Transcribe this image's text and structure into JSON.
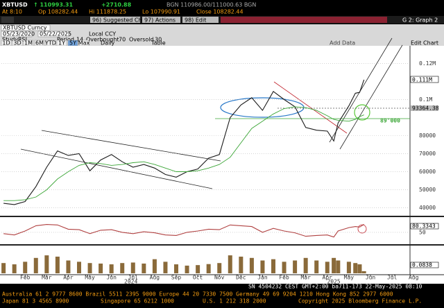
{
  "header": {
    "ticker": "XBTUSD",
    "last": "↑ 110993.31",
    "change": "+2710.88",
    "quote": "BGN 110986.00/111000.63 BGN",
    "time": "At 8:10",
    "open": "Op 108282.44",
    "high": "Hi 111878.25",
    "low": "Lo 107990.91",
    "close": "Close 108282.44"
  },
  "toolbar": {
    "suggested": "96) Suggested Charts",
    "actions": "97) Actions",
    "edit": "98) Edit",
    "graph": "G 2: Graph 2",
    "security": "XBTUSD Curncy",
    "start": "05/23/2020",
    "end": "05/22/2025",
    "ccy": "Local CCY",
    "study_label": "Study",
    "study": "RSI",
    "period_label": "Period",
    "period": "14",
    "overbought_label": "Overbought",
    "overbought": "70",
    "oversold_label": "Oversold",
    "oversold": "30",
    "ranges": [
      "1D",
      "3D",
      "1M",
      "6M",
      "YTD",
      "1Y",
      "5Y",
      "Max"
    ],
    "frequency": "Daily",
    "table": "Table",
    "add_data": "Add Data",
    "edit_chart": "Edit Chart"
  },
  "chart_data": [
    {
      "type": "line",
      "x": [
        0,
        0.5,
        1,
        1.5,
        2,
        2.5,
        3,
        3.5,
        4,
        4.5,
        5,
        5.5,
        6,
        6.5,
        7,
        7.5,
        8,
        8.5,
        9,
        9.5,
        10,
        10.5,
        11,
        11.5,
        12,
        12.5,
        13,
        13.5,
        14,
        14.5,
        15,
        15.3,
        15.5,
        16,
        16.3,
        16.5,
        16.7
      ],
      "series": [
        {
          "color": "#1a1a1a",
          "values": [
            42500,
            41800,
            43500,
            51800,
            62500,
            71500,
            69000,
            70000,
            60500,
            66500,
            69500,
            65500,
            62500,
            64000,
            62000,
            58500,
            57000,
            60000,
            61500,
            67500,
            69500,
            90000,
            97000,
            101000,
            94000,
            104500,
            100000,
            96000,
            84500,
            83000,
            82500,
            77000,
            87000,
            96500,
            103500,
            104000,
            110993.31
          ]
        },
        {
          "color": "#3aa535",
          "values": [
            44000,
            44000,
            44500,
            46000,
            50000,
            56000,
            60000,
            63500,
            65000,
            64500,
            63500,
            64000,
            65000,
            65500,
            64000,
            62000,
            60000,
            60000,
            60500,
            62000,
            64000,
            68000,
            76000,
            84000,
            88000,
            92000,
            95000,
            96000,
            95500,
            94000,
            91000,
            89000,
            88500,
            88000,
            89000,
            90500,
            91500
          ]
        }
      ],
      "xlim": [
        -0.1,
        18.8
      ],
      "ylim": [
        36000,
        129000
      ],
      "yticks": [
        40000,
        50000,
        60000,
        70000,
        80000,
        {
          "value": 100000,
          "label": "0.1M"
        },
        {
          "value": 120000,
          "label": "0.12M"
        }
      ],
      "annotations": [
        "0.111M",
        "93364.38",
        "89'000"
      ]
    },
    {
      "type": "line",
      "x": [
        0,
        0.5,
        1,
        1.5,
        2,
        2.5,
        3,
        3.5,
        4,
        4.5,
        5,
        5.5,
        6,
        6.5,
        7,
        7.5,
        8,
        8.5,
        9,
        9.5,
        10,
        10.5,
        11,
        11.5,
        12,
        12.5,
        13,
        13.5,
        14,
        14.5,
        15,
        15.3,
        15.5,
        16,
        16.3,
        16.5,
        16.7
      ],
      "series": [
        {
          "color": "#b04040",
          "values": [
            45,
            40,
            55,
            75,
            80,
            78,
            62,
            60,
            45,
            58,
            60,
            50,
            45,
            52,
            48,
            40,
            38,
            50,
            55,
            62,
            60,
            78,
            75,
            72,
            50,
            65,
            55,
            48,
            35,
            38,
            40,
            32,
            55,
            68,
            72,
            70,
            80.3343
          ]
        }
      ],
      "xlim": [
        -0.1,
        18.8
      ],
      "ylim": [
        10,
        100
      ],
      "yticks": [
        50
      ]
    },
    {
      "type": "bar",
      "x": [
        0,
        0.5,
        1,
        1.5,
        2,
        2.5,
        3,
        3.5,
        4,
        4.5,
        5,
        5.5,
        6,
        6.5,
        7,
        7.5,
        8,
        8.5,
        9,
        9.5,
        10,
        10.5,
        11,
        11.5,
        12,
        12.5,
        13,
        13.5,
        14,
        14.5,
        15,
        15.3,
        15.5,
        16,
        16.3,
        16.5,
        16.7
      ],
      "values": [
        0.4,
        0.35,
        0.45,
        0.6,
        0.7,
        0.65,
        0.5,
        0.45,
        0.4,
        0.38,
        0.35,
        0.4,
        0.42,
        0.38,
        0.55,
        0.45,
        0.35,
        0.3,
        0.32,
        0.36,
        0.4,
        0.7,
        0.65,
        0.6,
        0.5,
        0.55,
        0.45,
        0.5,
        0.6,
        0.5,
        0.45,
        0.6,
        0.5,
        0.45,
        0.4,
        0.35,
        0.0838
      ],
      "color": "#8a6a3a",
      "xlim": [
        -0.1,
        18.8
      ],
      "ylim": [
        0,
        1
      ],
      "xticks": [
        {
          "value": 1,
          "label": "Feb"
        },
        {
          "value": 2,
          "label": "Mar"
        },
        {
          "value": 3,
          "label": "Apr"
        },
        {
          "value": 4,
          "label": "May"
        },
        {
          "value": 5,
          "label": "Jun"
        },
        {
          "value": 6,
          "label": "Jul"
        },
        {
          "value": 7,
          "label": "Aug"
        },
        {
          "value": 8,
          "label": "Sep"
        },
        {
          "value": 9,
          "label": "Oct"
        },
        {
          "value": 10,
          "label": "Nov"
        },
        {
          "value": 11,
          "label": "Dec"
        },
        {
          "value": 12,
          "label": "Jan"
        },
        {
          "value": 13,
          "label": "Feb"
        },
        {
          "value": 14,
          "label": "Mar"
        },
        {
          "value": 15,
          "label": "Apr"
        },
        {
          "value": 16,
          "label": "May"
        },
        {
          "value": 17,
          "label": "Jun"
        },
        {
          "value": 18,
          "label": "Jul"
        },
        {
          "value": 19,
          "label": "Aug"
        }
      ],
      "year_labels": [
        {
          "value": 5.9,
          "label": "2024"
        },
        {
          "value": 15.3,
          "label": "2025"
        }
      ],
      "value_labels": "0.0838"
    }
  ],
  "footer": {
    "session": "SN 4504232 CEST GMT+2:00 ba711-173 22-May-2025 08:10",
    "line1": "Australia 61 2 9777 8600 Brazil 5511 2395 9000 Europe 44 20 7330 7500 Germany 49 69 9204 1210 Hong Kong 852 2977 6000",
    "japan": "Japan 81 3 4565 8900",
    "singapore": "Singapore 65 6212 1000",
    "us": "U.S. 1 212 318 2000",
    "copyright": "Copyright 2025 Bloomberg Finance L.P."
  }
}
